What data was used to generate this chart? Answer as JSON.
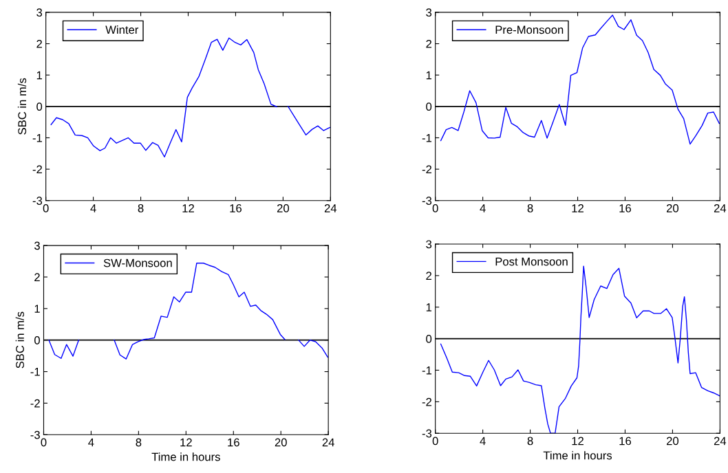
{
  "chart_data": [
    {
      "type": "line",
      "ylabel": "SBC in m/s",
      "xlim": [
        0,
        24
      ],
      "ylim": [
        -3,
        3
      ],
      "xticks": [
        0,
        4,
        8,
        12,
        16,
        20,
        24
      ],
      "yticks": [
        -3,
        -2,
        -1,
        0,
        1,
        2,
        3
      ],
      "grid": false,
      "legend": "top left",
      "ref_lines": [
        {
          "axis": "y",
          "value": 0,
          "color": "#000000"
        }
      ],
      "series": [
        {
          "name": "Winter",
          "color": "#0000ff",
          "x": [
            0.44,
            0.89,
            1.41,
            1.93,
            2.47,
            3.05,
            3.53,
            4.02,
            4.56,
            4.98,
            5.46,
            5.95,
            6.95,
            7.43,
            7.97,
            8.42,
            9.0,
            9.46,
            10.0,
            10.48,
            10.97,
            11.45,
            11.93,
            12.32,
            12.9,
            13.47,
            13.95,
            14.44,
            14.92,
            15.44,
            15.95,
            16.43,
            16.95,
            17.53,
            17.91,
            18.4,
            18.98,
            19.46,
            19.9,
            20.42,
            20.9,
            21.38,
            21.93,
            22.45,
            22.93,
            23.42,
            23.94
          ],
          "values": [
            -0.58,
            -0.36,
            -0.42,
            -0.55,
            -0.91,
            -0.93,
            -1.0,
            -1.26,
            -1.41,
            -1.33,
            -1.0,
            -1.17,
            -1.0,
            -1.17,
            -1.17,
            -1.4,
            -1.15,
            -1.24,
            -1.61,
            -1.17,
            -0.74,
            -1.13,
            0.29,
            0.58,
            0.95,
            1.53,
            2.04,
            2.14,
            1.79,
            2.18,
            2.04,
            1.96,
            2.13,
            1.72,
            1.17,
            0.73,
            0.07,
            -0.01,
            null,
            0,
            -0.29,
            -0.58,
            -0.91,
            -0.73,
            -0.62,
            -0.77,
            -0.67
          ]
        }
      ]
    },
    {
      "type": "line",
      "xlim": [
        0,
        24
      ],
      "ylim": [
        -3,
        3
      ],
      "xticks": [
        0,
        4,
        8,
        12,
        16,
        20,
        24
      ],
      "yticks": [
        -3,
        -2,
        -1,
        0,
        1,
        2,
        3
      ],
      "grid": false,
      "legend": "top left",
      "ref_lines": [
        {
          "axis": "y",
          "value": 0,
          "color": "#000000"
        }
      ],
      "series": [
        {
          "name": "Pre-Monsoon",
          "color": "#0000ff",
          "x": [
            0.46,
            0.91,
            1.39,
            1.92,
            2.4,
            2.9,
            3.43,
            3.95,
            4.45,
            4.97,
            5.46,
            5.94,
            6.42,
            6.91,
            7.39,
            7.88,
            8.36,
            8.94,
            9.42,
            9.91,
            10.45,
            10.97,
            11.42,
            11.94,
            12.42,
            12.91,
            13.49,
            13.97,
            14.46,
            14.94,
            15.43,
            15.91,
            16.49,
            16.97,
            17.46,
            17.94,
            18.42,
            18.97,
            19.39,
            19.97,
            20.46,
            20.94,
            21.48,
            21.95,
            22.49,
            22.97,
            23.46,
            23.94
          ],
          "values": [
            -1.09,
            -0.74,
            -0.67,
            -0.77,
            -0.18,
            0.5,
            0.12,
            -0.77,
            -1.0,
            -1.01,
            -0.98,
            -0.03,
            -0.54,
            -0.65,
            -0.83,
            -0.94,
            -0.98,
            -0.45,
            -1.01,
            -0.51,
            0.06,
            -0.6,
            0.99,
            1.08,
            1.87,
            2.23,
            2.28,
            2.5,
            2.71,
            2.91,
            2.55,
            2.45,
            2.76,
            2.27,
            2.1,
            1.72,
            1.18,
            0.99,
            0.72,
            0.52,
            -0.09,
            -0.39,
            -1.2,
            -0.94,
            -0.61,
            -0.21,
            -0.18,
            -0.54
          ]
        }
      ]
    },
    {
      "type": "line",
      "xlabel": "Time in hours",
      "ylabel": "SBC in m/s",
      "xlim": [
        0,
        24
      ],
      "ylim": [
        -3,
        3
      ],
      "xticks": [
        0,
        4,
        8,
        12,
        16,
        20,
        24
      ],
      "yticks": [
        -3,
        -2,
        -1,
        0,
        1,
        2,
        3
      ],
      "grid": false,
      "legend": "top left",
      "ref_lines": [
        {
          "axis": "y",
          "value": 0,
          "color": "#000000"
        }
      ],
      "series": [
        {
          "name": "SW-Monsoon",
          "color": "#0000ff",
          "x": [
            0.44,
            0.93,
            1.47,
            1.93,
            2.47,
            2.95,
            4.5,
            5.95,
            6.43,
            6.95,
            7.49,
            7.97,
            8.46,
            8.85,
            9.33,
            9.9,
            10.42,
            10.97,
            11.45,
            11.98,
            12.47,
            12.9,
            13.47,
            13.95,
            14.44,
            15.02,
            15.56,
            15.98,
            16.46,
            16.91,
            17.43,
            17.88,
            18.3,
            18.78,
            19.31,
            19.95,
            20.33,
            20.9,
            21.49,
            21.97,
            22.45,
            22.93,
            23.47,
            23.95
          ],
          "values": [
            0,
            -0.46,
            -0.58,
            -0.14,
            -0.51,
            0,
            null,
            0,
            -0.47,
            -0.6,
            -0.14,
            -0.05,
            0.02,
            0.04,
            0.07,
            0.76,
            0.72,
            1.37,
            1.21,
            1.52,
            1.52,
            2.44,
            2.44,
            2.37,
            2.31,
            2.17,
            2.08,
            1.77,
            1.37,
            1.52,
            1.07,
            1.11,
            0.94,
            0.82,
            0.65,
            0.18,
            0.02,
            null,
            0,
            -0.2,
            0,
            -0.05,
            -0.25,
            -0.54
          ]
        }
      ]
    },
    {
      "type": "line",
      "xlabel": "Time in hours",
      "xlim": [
        0,
        24
      ],
      "ylim": [
        -3,
        3
      ],
      "xticks": [
        0,
        4,
        8,
        12,
        16,
        20,
        24
      ],
      "yticks": [
        -3,
        -2,
        -1,
        0,
        1,
        2,
        3
      ],
      "grid": false,
      "legend": "top left",
      "ref_lines": [
        {
          "axis": "y",
          "value": 0,
          "color": "#000000"
        }
      ],
      "series": [
        {
          "name": "Post Monsoon",
          "color": "#0000ff",
          "x": [
            0.46,
            0.97,
            1.43,
            1.97,
            2.46,
            2.94,
            3.48,
            4.01,
            4.49,
            4.97,
            5.5,
            5.94,
            6.47,
            6.97,
            7.43,
            7.94,
            8.46,
            8.94,
            9.23,
            9.48,
            9.71,
            10.1,
            10.43,
            10.97,
            11.46,
            11.94,
            12.08,
            12.19,
            12.27,
            12.39,
            12.5,
            12.72,
            12.97,
            13.39,
            13.94,
            14.46,
            14.98,
            15.48,
            15.95,
            16.49,
            16.97,
            17.52,
            18.04,
            18.43,
            19.0,
            19.49,
            19.97,
            20.21,
            20.46,
            20.65,
            20.85,
            21.0,
            21.17,
            21.33,
            21.48,
            21.95,
            22.45,
            22.97,
            23.46,
            23.95
          ],
          "values": [
            -0.17,
            -0.62,
            -1.06,
            -1.08,
            -1.17,
            -1.19,
            -1.5,
            -1.06,
            -0.69,
            -0.99,
            -1.49,
            -1.28,
            -1.21,
            -0.99,
            -1.34,
            -1.39,
            -1.46,
            -1.49,
            -2.19,
            -2.71,
            -3.0,
            -3.0,
            -2.16,
            -1.89,
            -1.5,
            -1.24,
            -0.86,
            -0.07,
            0.66,
            1.46,
            2.3,
            1.61,
            0.67,
            1.24,
            1.67,
            1.59,
            2.03,
            2.23,
            1.35,
            1.13,
            0.66,
            0.88,
            0.88,
            0.8,
            0.8,
            0.95,
            0.67,
            0,
            -0.77,
            0,
            1.02,
            1.33,
            0.59,
            -0.44,
            -1.11,
            -1.08,
            -1.55,
            -1.65,
            -1.72,
            -1.81
          ]
        }
      ]
    }
  ]
}
